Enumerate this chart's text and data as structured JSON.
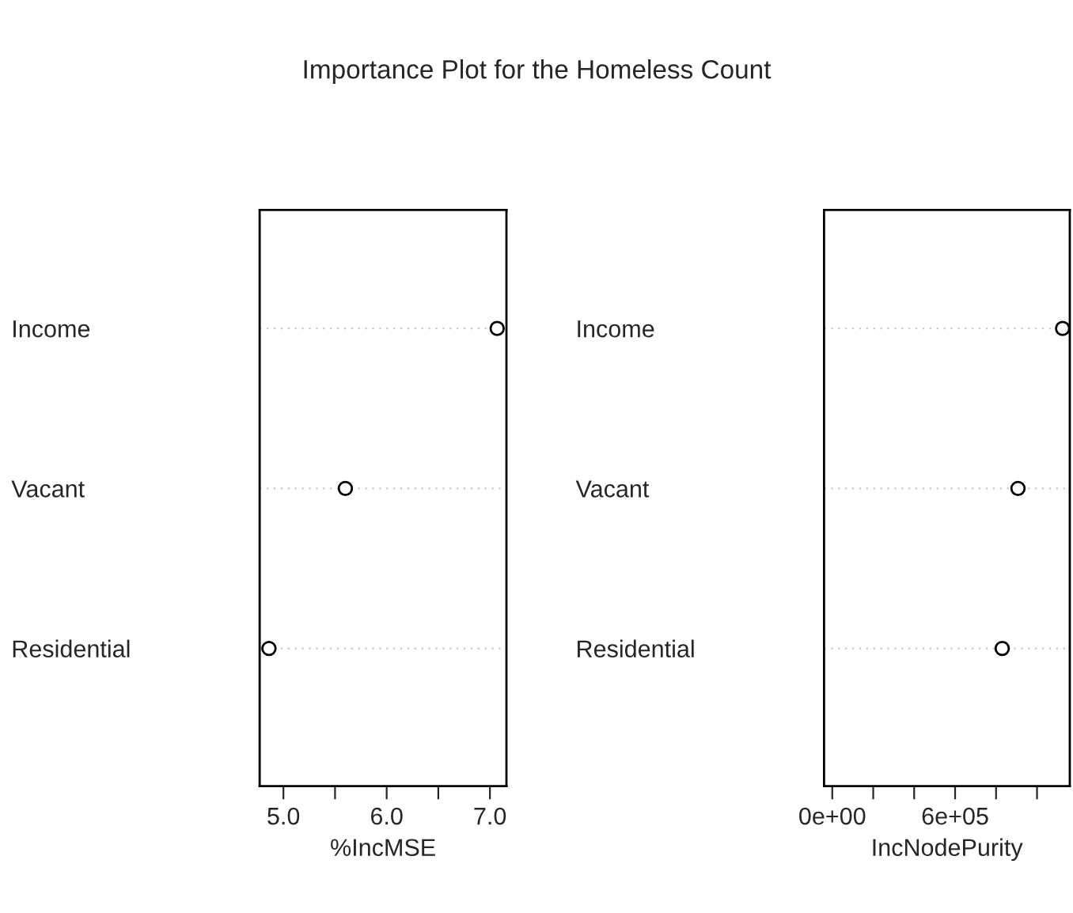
{
  "chart_data": [
    {
      "type": "scatter",
      "title": "Importance Plot for the Homeless Count",
      "orientation": "horizontal",
      "categories": [
        "Income",
        "Vacant",
        "Residential"
      ],
      "values": [
        7.07,
        5.6,
        4.86
      ],
      "color": "#000000",
      "marker": "circle",
      "grid": "y",
      "xlabel": "%IncMSE",
      "xlim": [
        4.77,
        7.16
      ],
      "xticks": [
        {
          "value": 5,
          "label": "5.0"
        },
        {
          "value": 5.5,
          "label": null
        },
        {
          "value": 6,
          "label": "6.0"
        },
        {
          "value": 6.5,
          "label": null
        },
        {
          "value": 7,
          "label": "7.0"
        }
      ]
    },
    {
      "type": "scatter",
      "orientation": "horizontal",
      "categories": [
        "Income",
        "Vacant",
        "Residential"
      ],
      "values": [
        1125000,
        907000,
        830000
      ],
      "color": "#000000",
      "marker": "circle",
      "grid": "y",
      "xlabel": "IncNodePurity",
      "xlim": [
        -40000,
        1160000
      ],
      "xticks": [
        {
          "value": 0,
          "label": "0e+00"
        },
        {
          "value": 200000,
          "label": null
        },
        {
          "value": 400000,
          "label": null
        },
        {
          "value": 600000,
          "label": "6e+05"
        },
        {
          "value": 800000,
          "label": null
        },
        {
          "value": 1000000,
          "label": null
        }
      ]
    }
  ]
}
